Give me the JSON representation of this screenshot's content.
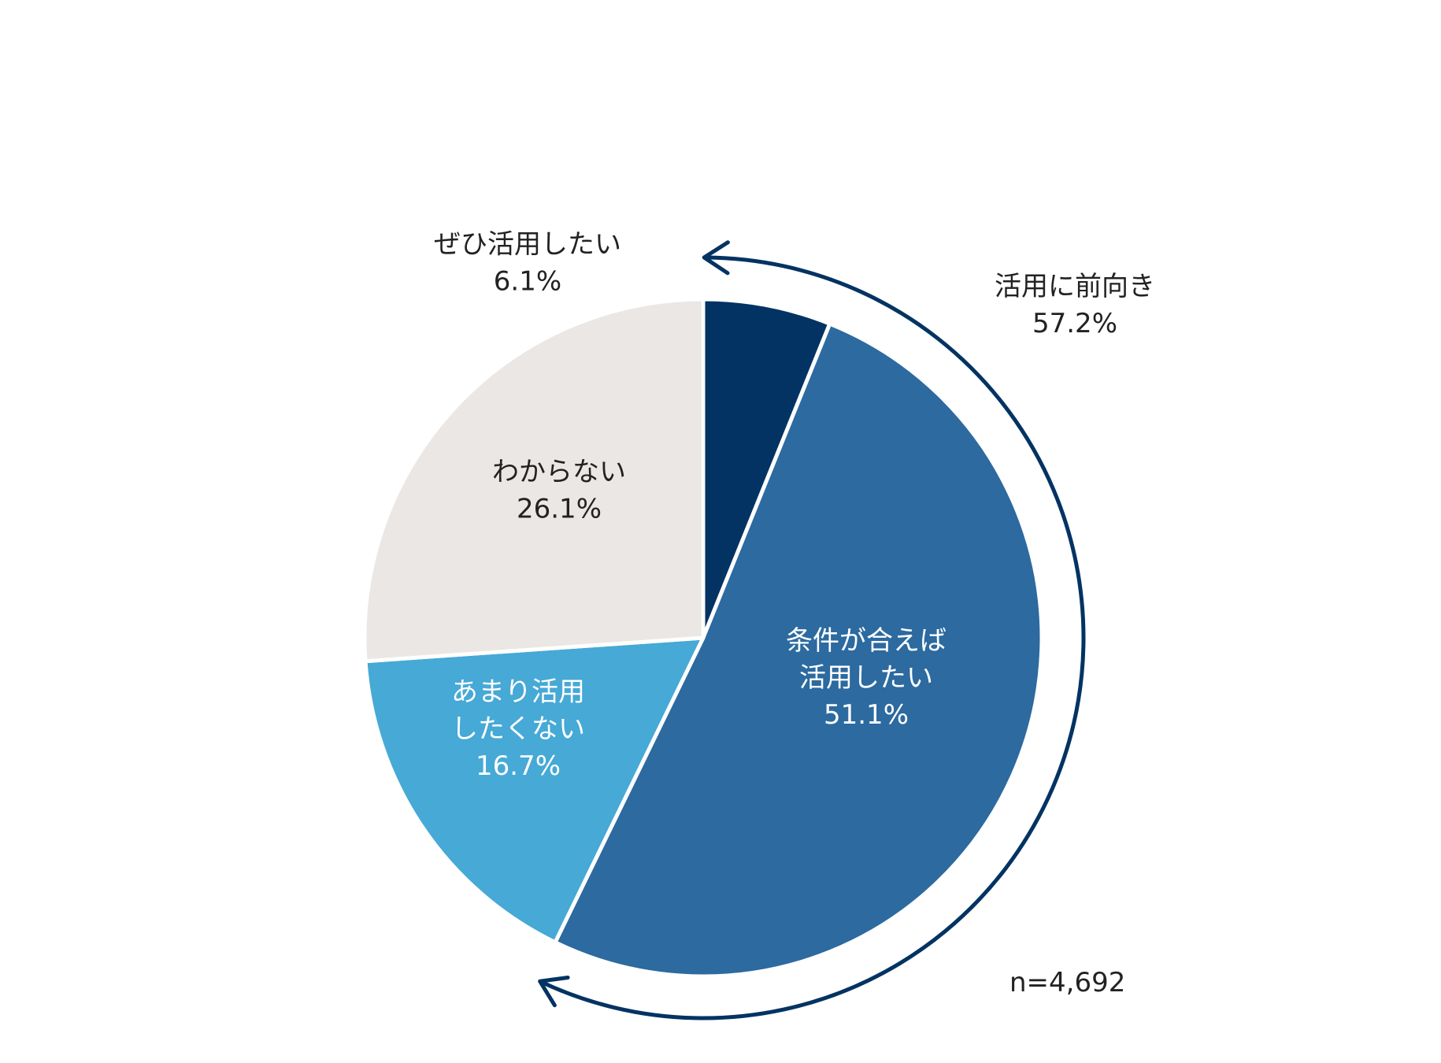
{
  "chart_data": {
    "type": "pie",
    "start": "12 o'clock",
    "direction": "clockwise",
    "slices": [
      {
        "label": "ぜひ活用したい",
        "label_lines": [
          "ぜひ活用したい"
        ],
        "value": 6.1,
        "value_text": "6.1%",
        "color": "#033363",
        "text_color": "#222222",
        "label_position": "outside"
      },
      {
        "label": "条件が合えば活用したい",
        "label_lines": [
          "条件が合えば",
          "活用したい"
        ],
        "value": 51.1,
        "value_text": "51.1%",
        "color": "#2C6AA0",
        "text_color": "#ffffff",
        "label_position": "inside"
      },
      {
        "label": "あまり活用したくない",
        "label_lines": [
          "あまり活用",
          "したくない"
        ],
        "value": 16.7,
        "value_text": "16.7%",
        "color": "#46A9D6",
        "text_color": "#ffffff",
        "label_position": "inside"
      },
      {
        "label": "わからない",
        "label_lines": [
          "わからない"
        ],
        "value": 26.1,
        "value_text": "26.1%",
        "color": "#EBE7E4",
        "text_color": "#222222",
        "label_position": "inside"
      }
    ],
    "bracket": {
      "label": "活用に前向き",
      "value": 57.2,
      "value_text": "57.2%",
      "covers": [
        "ぜひ活用したい",
        "条件が合えば活用したい"
      ],
      "color": "#033363"
    },
    "sample_size": "n=4,692",
    "legend": "none"
  }
}
